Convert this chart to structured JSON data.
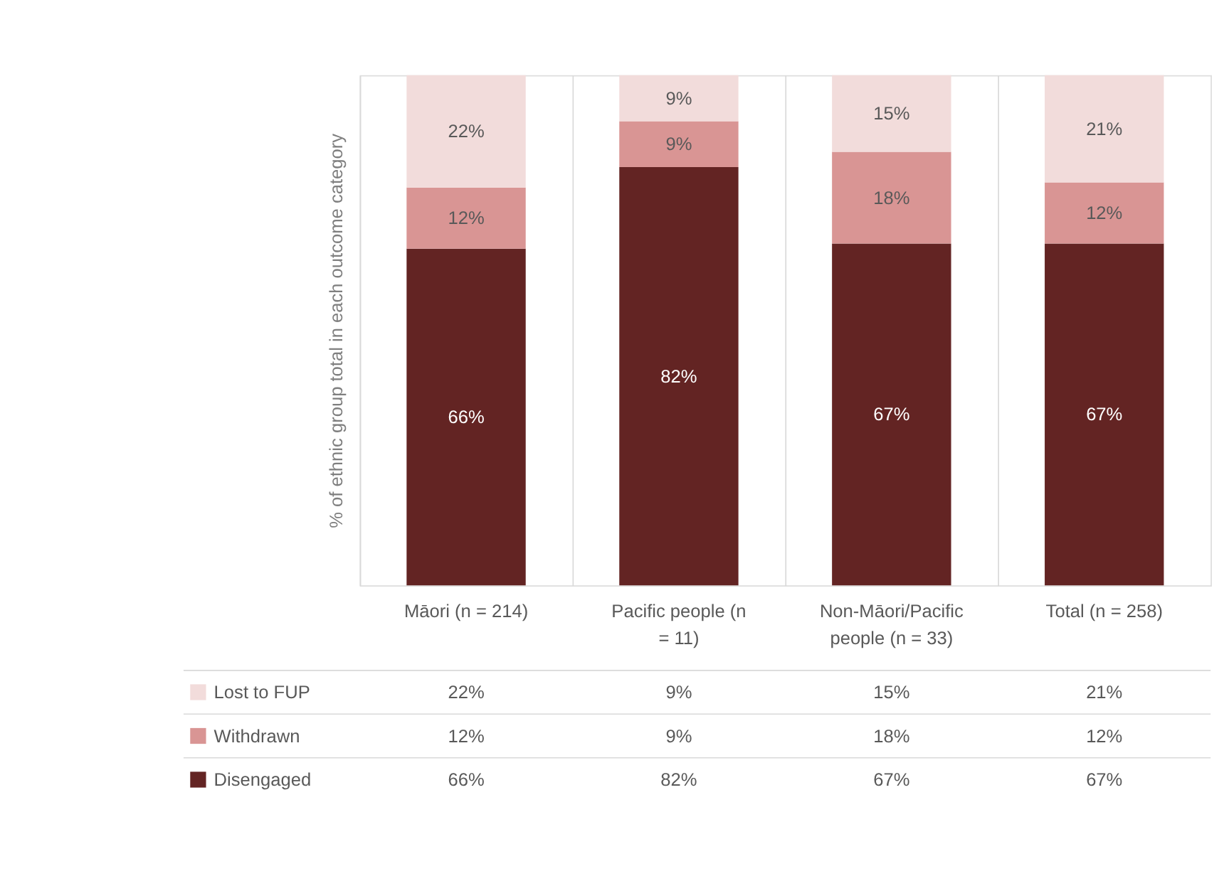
{
  "chart_data": {
    "type": "bar",
    "stacked": true,
    "ylabel": "% of ethnic group total in each outcome category",
    "categories": [
      "Māori (n = 214)",
      "Pacific people (n = 11)",
      "Non-Māori/Pacific people (n = 33)",
      "Total (n = 258)"
    ],
    "series": [
      {
        "name": "Disengaged",
        "color": "#632423",
        "values": [
          66,
          82,
          67,
          67
        ],
        "value_labels": [
          "66%",
          "82%",
          "67%",
          "67%"
        ]
      },
      {
        "name": "Withdrawn",
        "color": "#d99594",
        "values": [
          12,
          9,
          18,
          12
        ],
        "value_labels": [
          "12%",
          "9%",
          "18%",
          "12%"
        ]
      },
      {
        "name": "Lost to FUP",
        "color": "#f2dcdb",
        "values": [
          22,
          9,
          15,
          21
        ],
        "value_labels": [
          "22%",
          "9%",
          "15%",
          "21%"
        ]
      }
    ],
    "ylim": [
      0,
      100
    ],
    "tick_labels": "x",
    "grid": "x",
    "legend": "bottom"
  }
}
